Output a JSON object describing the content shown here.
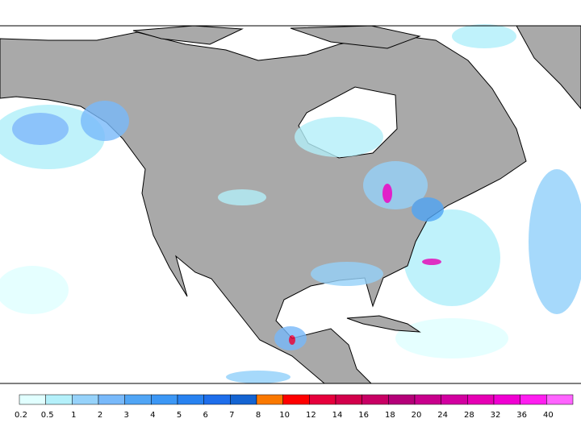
{
  "colorbar": {
    "levels": [
      {
        "value": 0.2,
        "color": "#e1ffff"
      },
      {
        "value": 0.5,
        "color": "#b4f0fa"
      },
      {
        "value": 1,
        "color": "#96d2fa"
      },
      {
        "value": 2,
        "color": "#78b9fa"
      },
      {
        "value": 3,
        "color": "#50a5f5"
      },
      {
        "value": 4,
        "color": "#3c97f5"
      },
      {
        "value": 5,
        "color": "#2882f0"
      },
      {
        "value": 6,
        "color": "#1e6eeb"
      },
      {
        "value": 7,
        "color": "#1464d2"
      },
      {
        "value": 8,
        "color": "#fa7800"
      },
      {
        "value": 10,
        "color": "#ff0000"
      },
      {
        "value": 12,
        "color": "#e6003c"
      },
      {
        "value": 14,
        "color": "#d2004b"
      },
      {
        "value": 16,
        "color": "#c80064"
      },
      {
        "value": 18,
        "color": "#b40078"
      },
      {
        "value": 20,
        "color": "#c8008c"
      },
      {
        "value": 24,
        "color": "#d200a0"
      },
      {
        "value": 28,
        "color": "#e600b4"
      },
      {
        "value": 32,
        "color": "#f000d2"
      },
      {
        "value": 36,
        "color": "#ff1ef0"
      },
      {
        "value": 40,
        "color": "#ff64ff"
      }
    ]
  }
}
